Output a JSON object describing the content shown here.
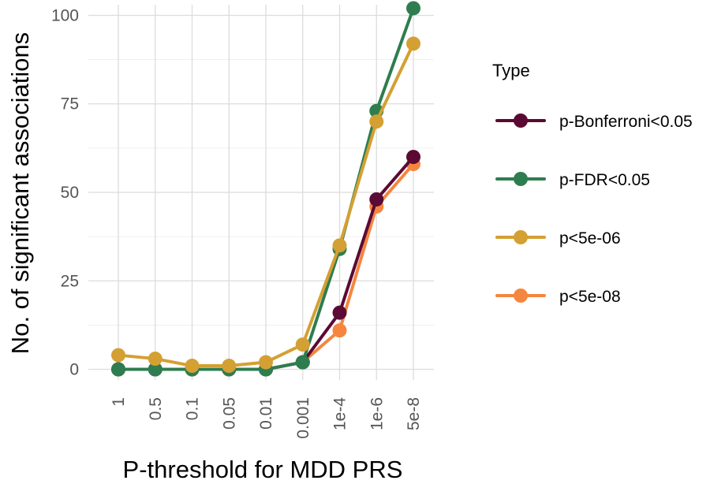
{
  "chart_data": {
    "type": "line",
    "xlabel": "P-threshold for MDD PRS",
    "ylabel": "No. of significant associations",
    "categories": [
      "1",
      "0.5",
      "0.1",
      "0.05",
      "0.01",
      "0.001",
      "1e-4",
      "1e-6",
      "5e-8"
    ],
    "ylim": [
      -3,
      103
    ],
    "yticks": [
      0,
      25,
      50,
      75,
      100
    ],
    "grid": true,
    "legend": {
      "title": "Type",
      "position": "right"
    },
    "series": [
      {
        "name": "p-Bonferroni<0.05",
        "color": "#5b0a33",
        "values": [
          0,
          0,
          0,
          0,
          0,
          2,
          16,
          48,
          60
        ]
      },
      {
        "name": "p-FDR<0.05",
        "color": "#2e7d4f",
        "values": [
          0,
          0,
          0,
          0,
          0,
          2,
          34,
          73,
          102
        ]
      },
      {
        "name": "p<5e-06",
        "color": "#d4a033",
        "values": [
          4,
          3,
          1,
          1,
          2,
          7,
          35,
          70,
          92
        ]
      },
      {
        "name": "p<5e-08",
        "color": "#f5863f",
        "values": [
          0,
          0,
          0,
          0,
          0,
          2,
          11,
          46,
          58
        ]
      }
    ],
    "draw_order": [
      3,
      0,
      1,
      2
    ]
  }
}
